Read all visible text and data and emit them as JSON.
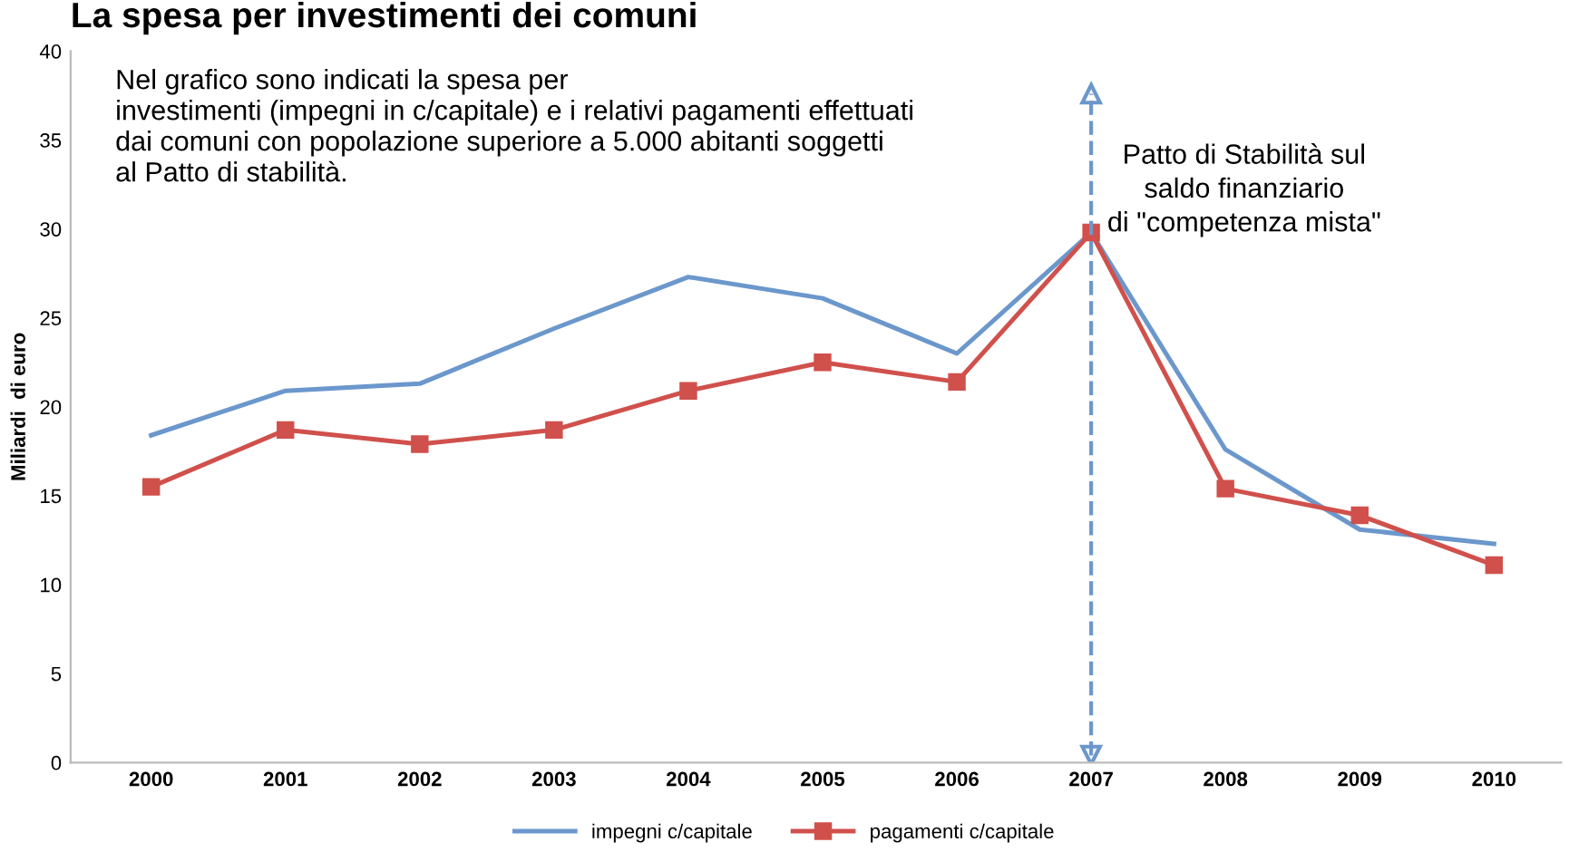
{
  "chart_data": {
    "type": "line",
    "title": "La spesa per investimenti dei comuni",
    "subtitle": "Nel grafico sono indicati la spesa per\ninvestimenti (impegni in c/capitale) e i relativi pagamenti effettuati\ndai comuni con popolazione superiore a 5.000 abitanti soggetti\nal Patto di stabilità.",
    "ylabel": "Miliardi  di euro",
    "categories": [
      "2000",
      "2001",
      "2002",
      "2003",
      "2004",
      "2005",
      "2006",
      "2007",
      "2008",
      "2009",
      "2010"
    ],
    "series": [
      {
        "name": "impegni c/capitale",
        "color": "#6b97cc",
        "marker": "none",
        "values": [
          18.4,
          20.9,
          21.3,
          24.4,
          27.3,
          26.1,
          23.0,
          29.8,
          17.6,
          13.1,
          12.3
        ]
      },
      {
        "name": "pagamenti c/capitale",
        "color": "#d0504c",
        "marker": "square",
        "values": [
          15.5,
          18.7,
          17.9,
          18.7,
          20.9,
          22.5,
          21.4,
          29.8,
          15.4,
          13.9,
          11.1
        ]
      }
    ],
    "ylim": [
      0,
      40
    ],
    "yticks": [
      0,
      5,
      10,
      15,
      20,
      25,
      30,
      35,
      40
    ],
    "grid": false,
    "legend": "bottom",
    "ref_lines": [
      {
        "axis": "x",
        "value": "2007",
        "label": "Patto di Stabilità sul\nsaldo finanziario\ndi \"competenza mista\"",
        "color": "#6b97cc",
        "line_style": "dashed"
      }
    ]
  }
}
